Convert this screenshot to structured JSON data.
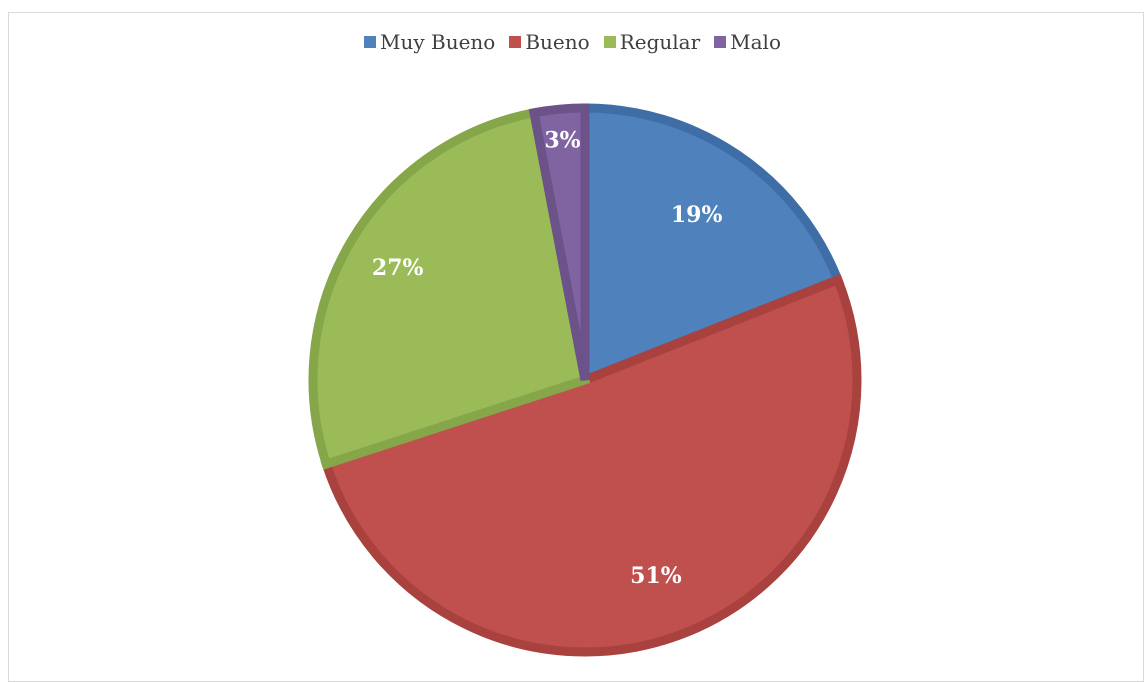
{
  "chart_data": {
    "type": "pie",
    "categories": [
      "Muy Bueno",
      "Bueno",
      "Regular",
      "Malo"
    ],
    "values": [
      19,
      51,
      27,
      3
    ],
    "data_labels": [
      "19%",
      "51%",
      "27%",
      "3%"
    ],
    "colors": [
      "#4F81BD",
      "#C0504D",
      "#9BBB59",
      "#8064A2"
    ],
    "border_colors": [
      "#3F6EA6",
      "#A9413E",
      "#86A64A",
      "#6B5289"
    ],
    "title": "",
    "legend_position": "top"
  }
}
